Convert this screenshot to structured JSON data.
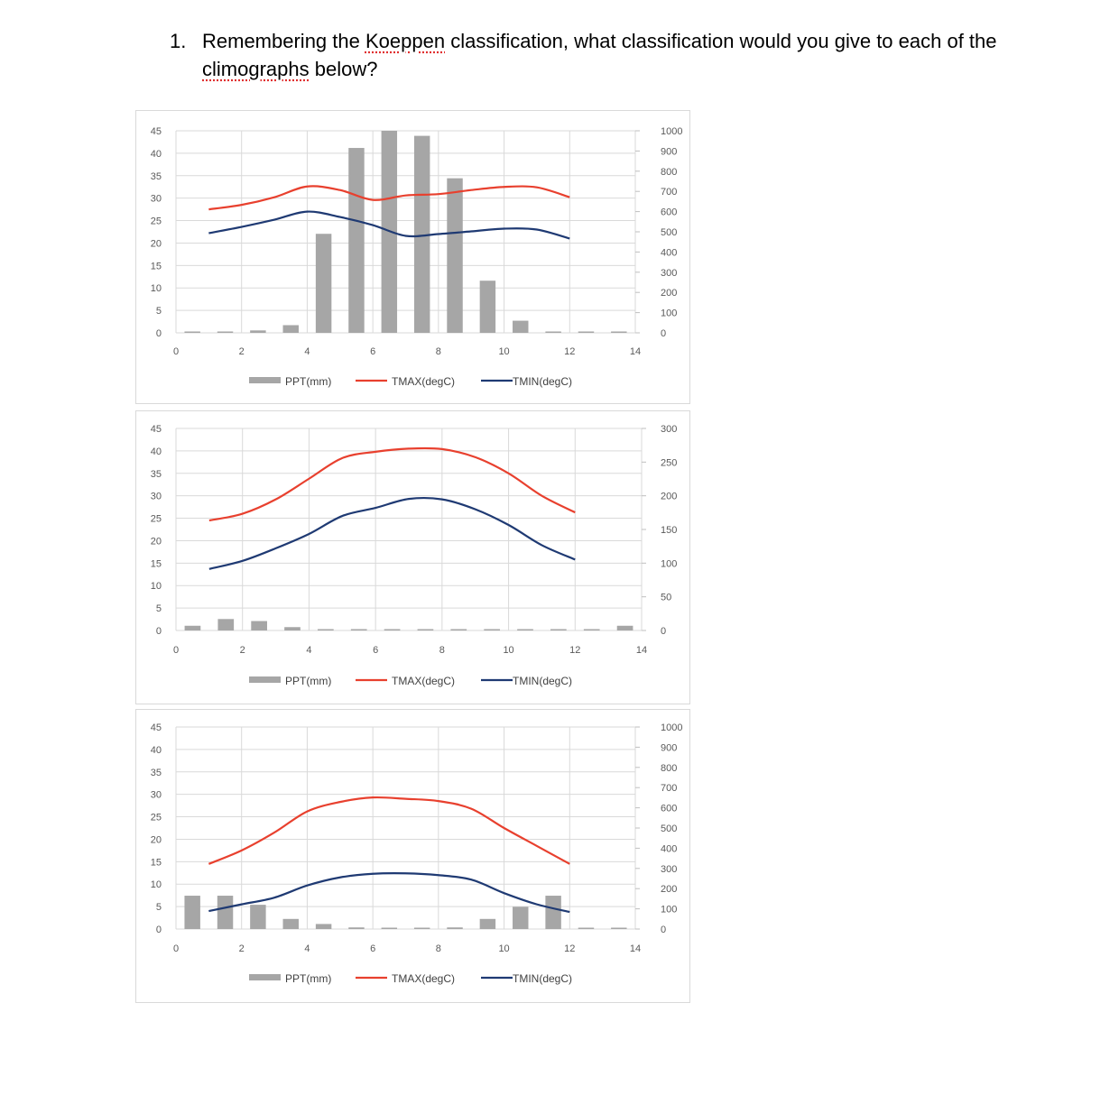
{
  "question": {
    "number": "1.",
    "before": "Remembering the ",
    "word1": "Koeppen",
    "middle": " classification, what classification would you give to each of the ",
    "word2": "climographs",
    "after": " below?"
  },
  "colors": {
    "ppt": "#a6a6a6",
    "tmax": "#e8402e",
    "tmin": "#1f3a73",
    "grid": "#d9d9d9",
    "tick": "#595959"
  },
  "chart_data": [
    {
      "type": "bar+line",
      "title": "",
      "xlabel": "",
      "ylabel": "",
      "y2label": "",
      "xlim": [
        0,
        14
      ],
      "xticks": [
        0,
        2,
        4,
        6,
        8,
        10,
        12,
        14
      ],
      "ylim": [
        0,
        45
      ],
      "yticks": [
        0,
        5,
        10,
        15,
        20,
        25,
        30,
        35,
        40,
        45
      ],
      "y2lim": [
        0,
        1000
      ],
      "y2ticks": [
        0,
        100,
        200,
        300,
        400,
        500,
        600,
        700,
        800,
        900,
        1000
      ],
      "legend_position": "bottom",
      "series": [
        {
          "name": "PPT(mm)",
          "axis": "secondary",
          "kind": "bar",
          "x": [
            0.5,
            1.5,
            2.5,
            3.5,
            4.5,
            5.5,
            6.5,
            7.5,
            8.5,
            9.5,
            10.5,
            11.5,
            12.5,
            13.5
          ],
          "values": [
            3,
            3,
            12,
            38,
            490,
            915,
            1000,
            975,
            765,
            258,
            60,
            5,
            0,
            0
          ]
        },
        {
          "name": "TMAX(degC)",
          "axis": "primary",
          "kind": "line",
          "x": [
            1,
            2,
            3,
            4,
            5,
            6,
            7,
            8,
            9,
            10,
            11,
            12
          ],
          "values": [
            27.5,
            28.5,
            30.2,
            32.6,
            31.8,
            29.6,
            30.6,
            30.9,
            31.8,
            32.5,
            32.4,
            30.2
          ]
        },
        {
          "name": "TMIN(degC)",
          "axis": "primary",
          "kind": "line",
          "x": [
            1,
            2,
            3,
            4,
            5,
            6,
            7,
            8,
            9,
            10,
            11,
            12
          ],
          "values": [
            22.2,
            23.6,
            25.2,
            27.0,
            25.8,
            24.0,
            21.6,
            22.0,
            22.6,
            23.2,
            23.0,
            21.0
          ]
        }
      ]
    },
    {
      "type": "bar+line",
      "title": "",
      "xlabel": "",
      "ylabel": "",
      "y2label": "",
      "xlim": [
        0,
        14
      ],
      "xticks": [
        0,
        2,
        4,
        6,
        8,
        10,
        12,
        14
      ],
      "ylim": [
        0,
        45
      ],
      "yticks": [
        0,
        5,
        10,
        15,
        20,
        25,
        30,
        35,
        40,
        45
      ],
      "y2lim": [
        0,
        300
      ],
      "y2ticks": [
        0,
        50,
        100,
        150,
        200,
        250,
        300
      ],
      "legend_position": "bottom",
      "series": [
        {
          "name": "PPT(mm)",
          "axis": "secondary",
          "kind": "bar",
          "x": [
            0.5,
            1.5,
            2.5,
            3.5,
            4.5,
            5.5,
            6.5,
            7.5,
            8.5,
            9.5,
            10.5,
            11.5,
            12.5,
            13.5
          ],
          "values": [
            7,
            17,
            14,
            5,
            2,
            0,
            0,
            1,
            0,
            0,
            0,
            1,
            0,
            7
          ]
        },
        {
          "name": "TMAX(degC)",
          "axis": "primary",
          "kind": "line",
          "x": [
            1,
            2,
            3,
            4,
            5,
            6,
            7,
            8,
            9,
            10,
            11,
            12
          ],
          "values": [
            24.5,
            26.0,
            29.2,
            33.8,
            38.4,
            39.8,
            40.5,
            40.4,
            38.6,
            35.0,
            30.0,
            26.3
          ]
        },
        {
          "name": "TMIN(degC)",
          "axis": "primary",
          "kind": "line",
          "x": [
            1,
            2,
            3,
            4,
            5,
            6,
            7,
            8,
            9,
            10,
            11,
            12
          ],
          "values": [
            13.7,
            15.5,
            18.3,
            21.5,
            25.5,
            27.3,
            29.3,
            29.2,
            27.0,
            23.5,
            19.0,
            15.8
          ]
        }
      ]
    },
    {
      "type": "bar+line",
      "title": "",
      "xlabel": "",
      "ylabel": "",
      "y2label": "",
      "xlim": [
        0,
        14
      ],
      "xticks": [
        0,
        2,
        4,
        6,
        8,
        10,
        12,
        14
      ],
      "ylim": [
        0,
        45
      ],
      "yticks": [
        0,
        5,
        10,
        15,
        20,
        25,
        30,
        35,
        40,
        45
      ],
      "y2lim": [
        0,
        1000
      ],
      "y2ticks": [
        0,
        100,
        200,
        300,
        400,
        500,
        600,
        700,
        800,
        900,
        1000
      ],
      "legend_position": "bottom",
      "series": [
        {
          "name": "PPT(mm)",
          "axis": "secondary",
          "kind": "bar",
          "x": [
            0.5,
            1.5,
            2.5,
            3.5,
            4.5,
            5.5,
            6.5,
            7.5,
            8.5,
            9.5,
            10.5,
            11.5,
            12.5,
            13.5
          ],
          "values": [
            165,
            165,
            120,
            50,
            25,
            8,
            3,
            3,
            8,
            50,
            110,
            165,
            0,
            0
          ]
        },
        {
          "name": "TMAX(degC)",
          "axis": "primary",
          "kind": "line",
          "x": [
            1,
            2,
            3,
            4,
            5,
            6,
            7,
            8,
            9,
            10,
            11,
            12
          ],
          "values": [
            14.5,
            17.5,
            21.5,
            26.2,
            28.3,
            29.3,
            29.0,
            28.5,
            26.8,
            22.5,
            18.5,
            14.5
          ]
        },
        {
          "name": "TMIN(degC)",
          "axis": "primary",
          "kind": "line",
          "x": [
            1,
            2,
            3,
            4,
            5,
            6,
            7,
            8,
            9,
            10,
            11,
            12
          ],
          "values": [
            4.0,
            5.5,
            7.0,
            9.7,
            11.5,
            12.3,
            12.4,
            12.0,
            11.0,
            8.0,
            5.5,
            3.8
          ]
        }
      ]
    }
  ]
}
